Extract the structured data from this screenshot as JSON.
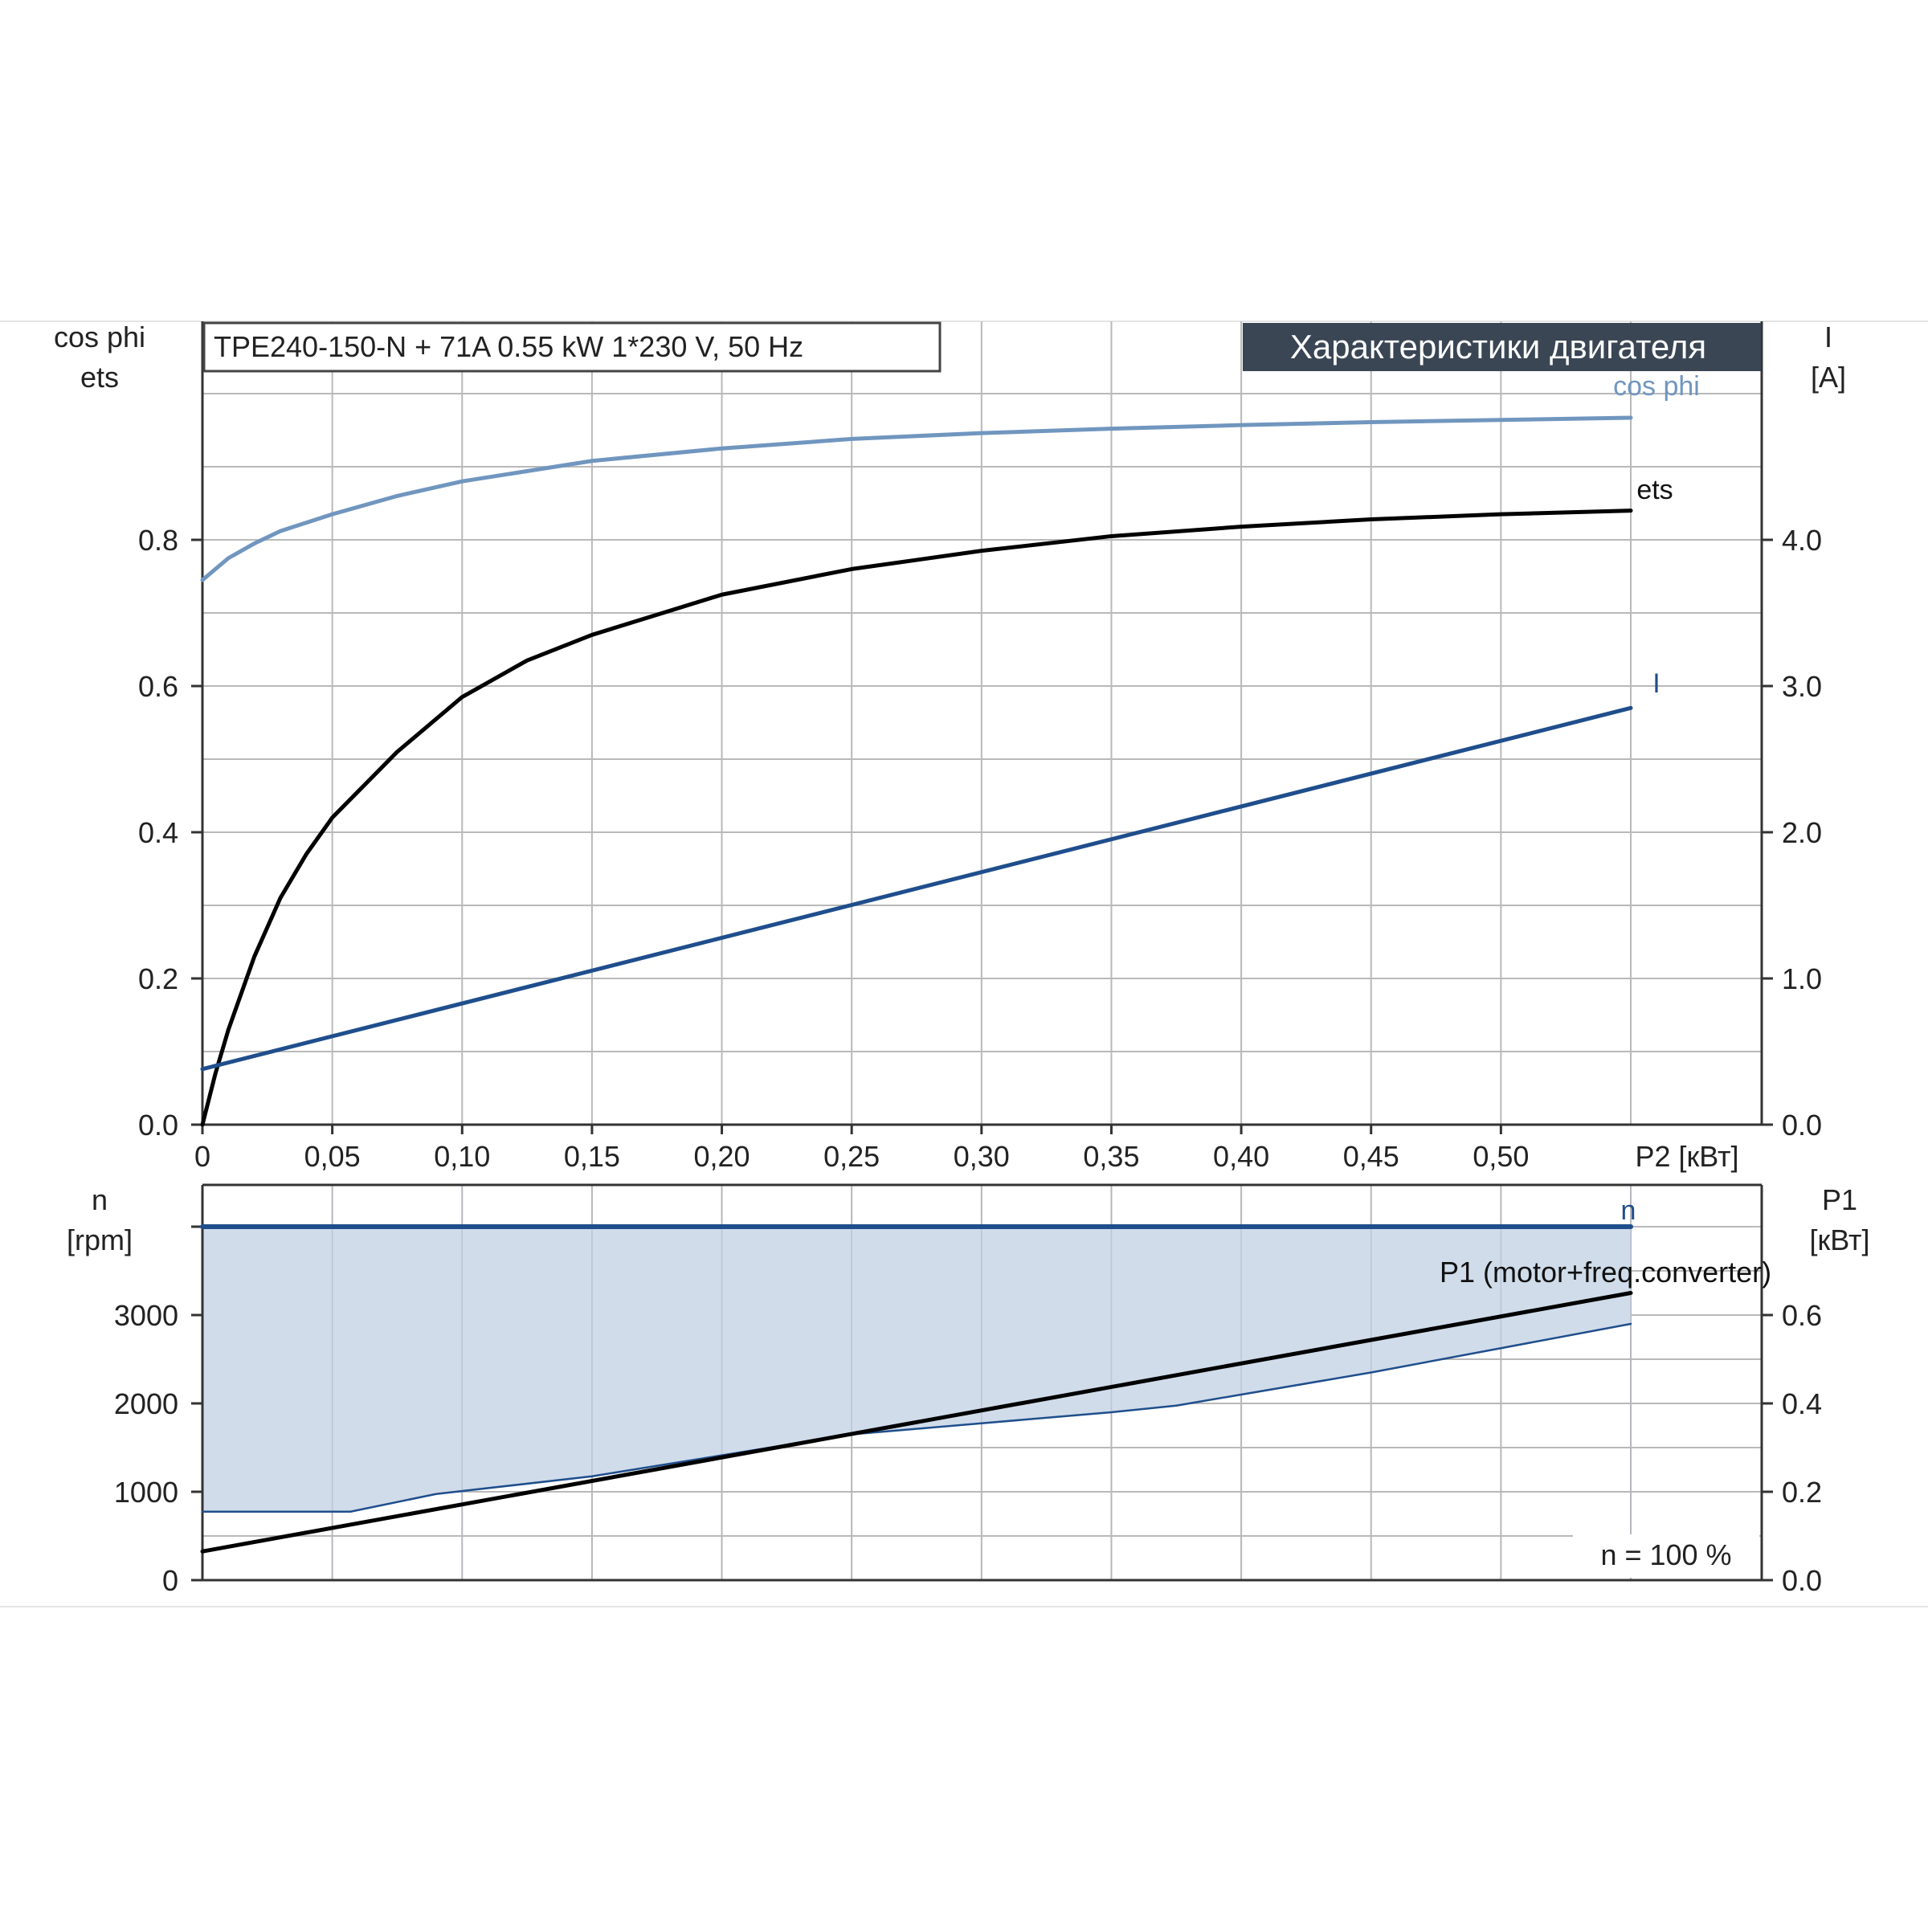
{
  "chart_data": [
    {
      "type": "line",
      "header_box": "TPE240-150-N + 71A   0.55 kW   1*230 V, 50 Hz",
      "title_banner": "Характеристики двигателя",
      "y_left_label_1": "cos phi",
      "y_left_label_2": "ets",
      "y_right_label_1": "I",
      "y_right_label_2": "[A]",
      "xlabel": "P2 [кВт]",
      "x_ticks": [
        "0",
        "0,05",
        "0,10",
        "0,15",
        "0,20",
        "0,25",
        "0,30",
        "0,35",
        "0,40",
        "0,45",
        "0,50"
      ],
      "y_left_ticks": [
        "0.0",
        "0.2",
        "0.4",
        "0.6",
        "0.8"
      ],
      "y_right_ticks": [
        "0.0",
        "1.0",
        "2.0",
        "3.0",
        "4.0"
      ],
      "xlim": [
        0,
        0.55
      ],
      "ylim_left": [
        0,
        1.0
      ],
      "ylim_right": [
        0,
        5.0
      ],
      "grid": true,
      "series": [
        {
          "name": "cos phi",
          "axis": "left",
          "color": "#7096bf",
          "x": [
            0,
            0.01,
            0.02,
            0.03,
            0.05,
            0.075,
            0.1,
            0.15,
            0.2,
            0.25,
            0.3,
            0.35,
            0.4,
            0.45,
            0.5,
            0.55
          ],
          "y": [
            0.745,
            0.775,
            0.795,
            0.812,
            0.835,
            0.86,
            0.88,
            0.908,
            0.925,
            0.938,
            0.946,
            0.952,
            0.957,
            0.961,
            0.964,
            0.967
          ]
        },
        {
          "name": "ets",
          "axis": "left",
          "color": "#000000",
          "x": [
            0,
            0.005,
            0.01,
            0.02,
            0.03,
            0.04,
            0.05,
            0.075,
            0.1,
            0.125,
            0.15,
            0.2,
            0.25,
            0.3,
            0.35,
            0.4,
            0.45,
            0.5,
            0.55
          ],
          "y": [
            0.0,
            0.07,
            0.13,
            0.23,
            0.31,
            0.37,
            0.42,
            0.51,
            0.585,
            0.635,
            0.67,
            0.725,
            0.76,
            0.785,
            0.805,
            0.818,
            0.828,
            0.835,
            0.84
          ]
        },
        {
          "name": "I",
          "axis": "right",
          "color": "#1f4e8c",
          "x": [
            0,
            0.55
          ],
          "y": [
            0.38,
            2.85
          ]
        }
      ]
    },
    {
      "type": "line",
      "y_left_label_1": "n",
      "y_left_label_2": "[rpm]",
      "y_right_label_1": "P1",
      "y_right_label_2": "[кВт]",
      "y_left_ticks": [
        "0",
        "1000",
        "2000",
        "3000"
      ],
      "y_right_ticks": [
        "0.0",
        "0.2",
        "0.4",
        "0.6"
      ],
      "xlim": [
        0,
        0.55
      ],
      "ylim_left": [
        0,
        4500
      ],
      "ylim_right": [
        0,
        0.9
      ],
      "grid": true,
      "annotation": "n = 100 %",
      "series": [
        {
          "name": "n",
          "axis": "left",
          "color": "#1f4e8c",
          "x": [
            0,
            0.55
          ],
          "y": [
            4000,
            4000
          ]
        },
        {
          "name": "P1 (motor+freq.converter)",
          "axis": "right",
          "color": "#000000",
          "x": [
            0,
            0.55
          ],
          "y": [
            0.065,
            0.65
          ]
        },
        {
          "name": "",
          "axis": "right",
          "color": "#1f4e8c",
          "fill": "#d0dcea",
          "x": [
            0,
            0.057,
            0.09,
            0.15,
            0.25,
            0.3,
            0.35,
            0.375,
            0.4,
            0.45,
            0.5,
            0.55
          ],
          "y": [
            0.155,
            0.155,
            0.195,
            0.235,
            0.33,
            0.355,
            0.38,
            0.395,
            0.42,
            0.47,
            0.525,
            0.58
          ]
        }
      ]
    }
  ]
}
